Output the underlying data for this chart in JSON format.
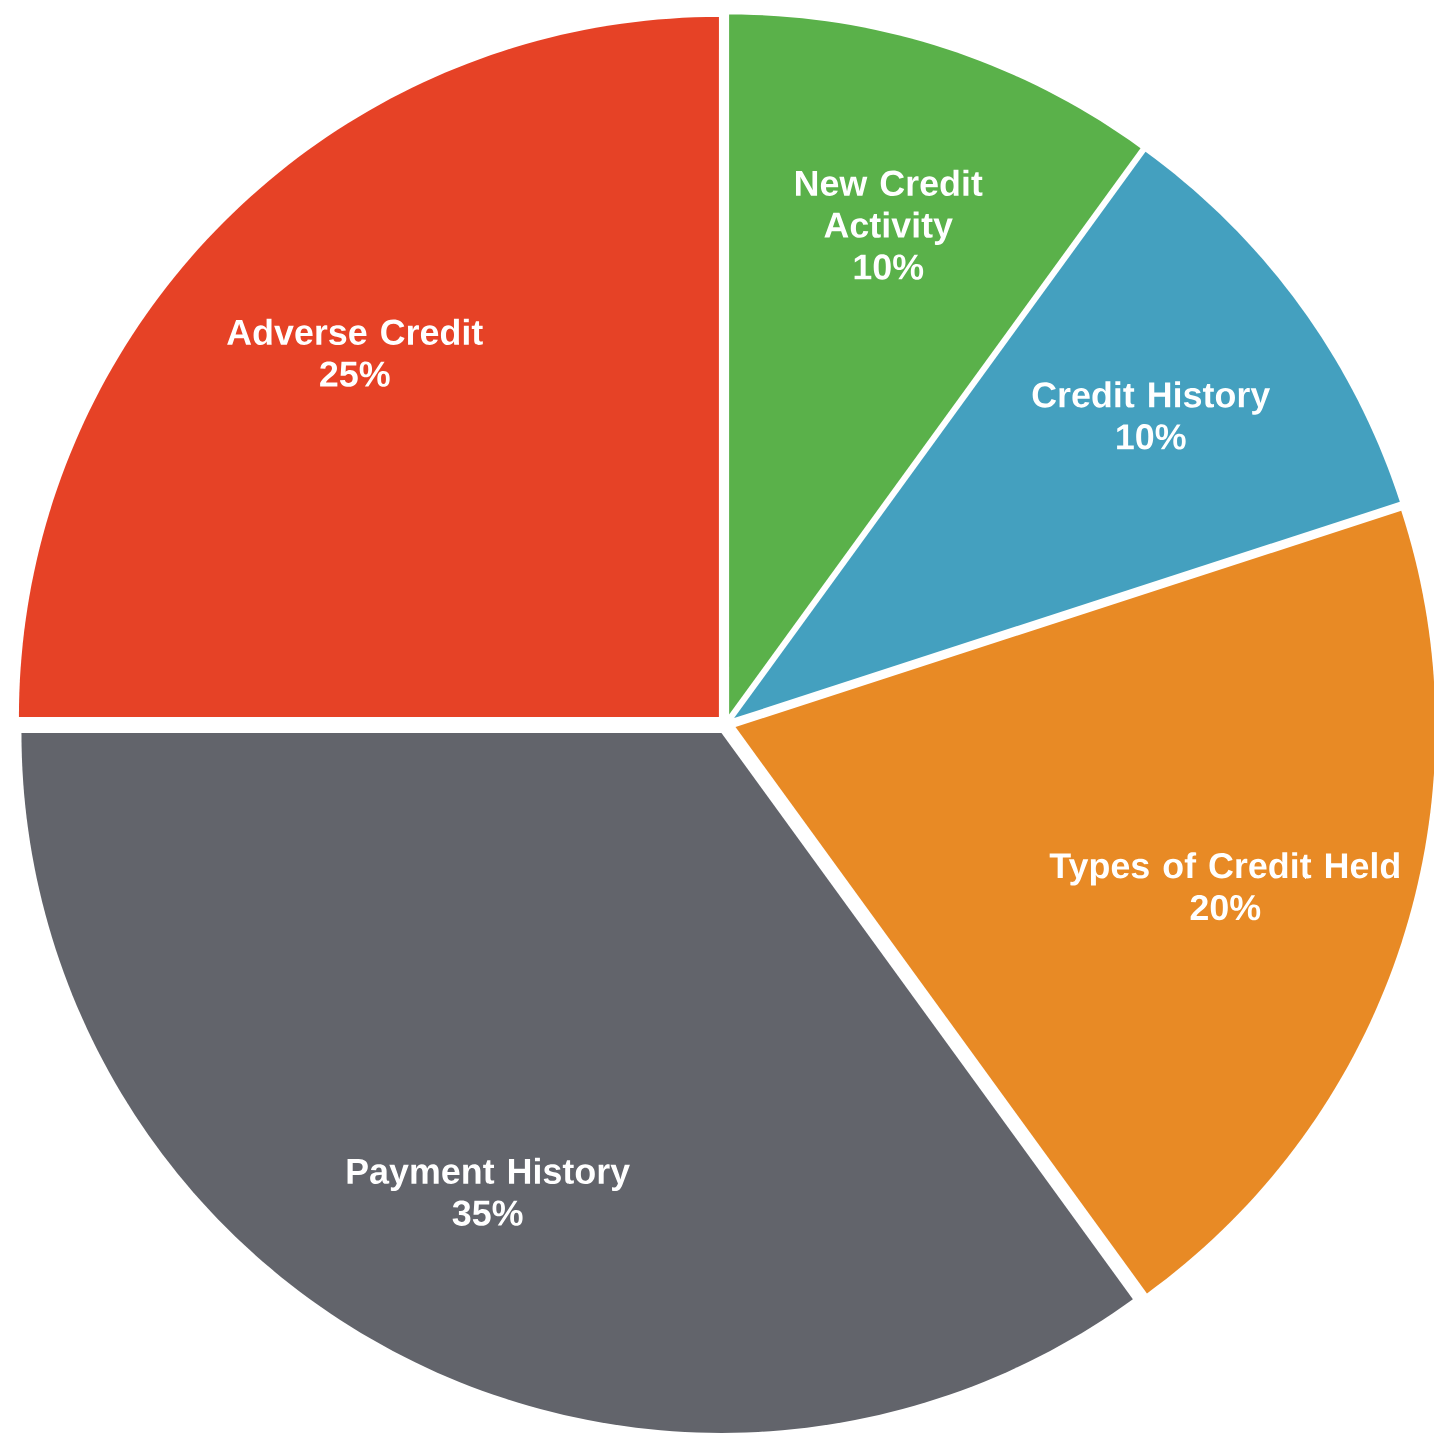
{
  "chart_data": {
    "type": "pie",
    "categories": [
      "New Credit Activity",
      "Credit History",
      "Types of Credit Held",
      "Payment History",
      "Adverse Credit"
    ],
    "values": [
      10,
      10,
      20,
      35,
      25
    ],
    "value_labels": [
      "10%",
      "10%",
      "20%",
      "35%",
      "25%"
    ],
    "colors": [
      "#5ab14a",
      "#44a0bf",
      "#e88a25",
      "#62646b",
      "#e64226"
    ]
  }
}
